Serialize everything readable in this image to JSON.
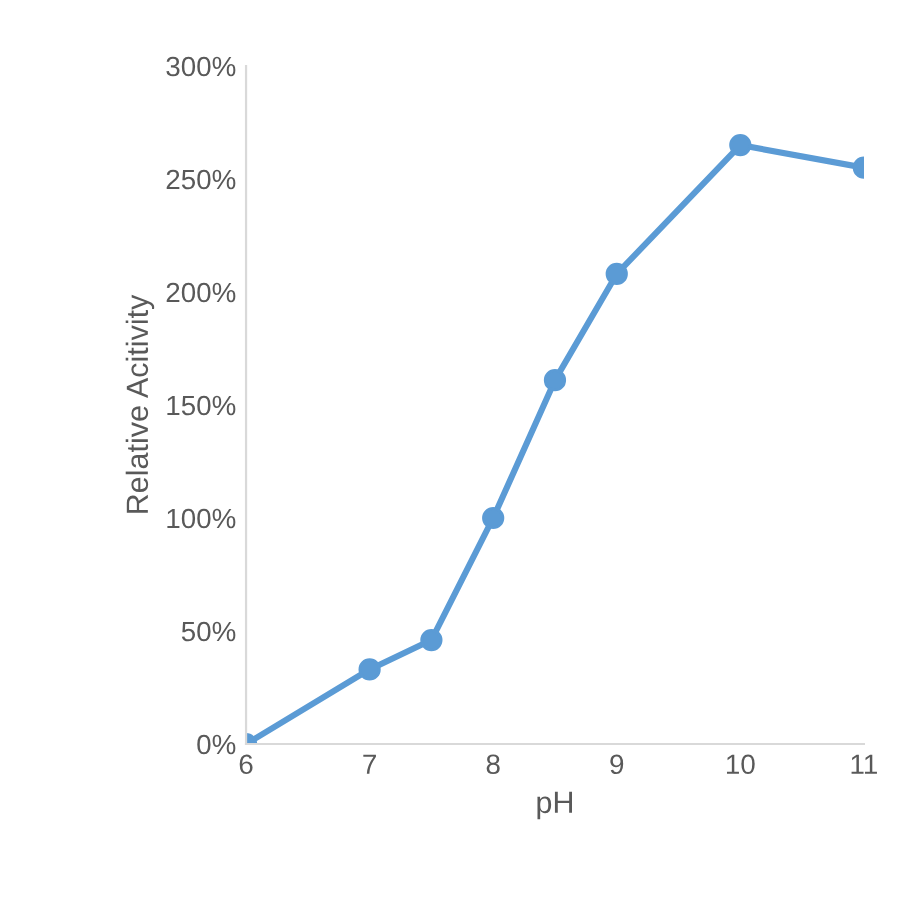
{
  "chart_data": {
    "type": "line",
    "xlabel": "pH",
    "ylabel": "Relative Acitivity",
    "x": [
      6,
      7,
      7.5,
      8,
      8.5,
      9,
      10,
      11
    ],
    "series": [
      {
        "color": "#5b9bd5",
        "values": [
          0,
          33,
          46,
          100,
          161,
          208,
          265,
          255
        ]
      }
    ],
    "xlim": [
      6,
      11
    ],
    "xticks": [
      6,
      7,
      8,
      9,
      10,
      11
    ],
    "ylim": [
      0,
      300
    ],
    "yticks": [
      {
        "value": 0,
        "label": "0%"
      },
      {
        "value": 50,
        "label": "50%"
      },
      {
        "value": 100,
        "label": "100%"
      },
      {
        "value": 150,
        "label": "150%"
      },
      {
        "value": 200,
        "label": "200%"
      },
      {
        "value": 250,
        "label": "250%"
      },
      {
        "value": 300,
        "label": "300%"
      }
    ],
    "marker": "circle",
    "line_style": "solid",
    "grid": false,
    "legend": false
  }
}
